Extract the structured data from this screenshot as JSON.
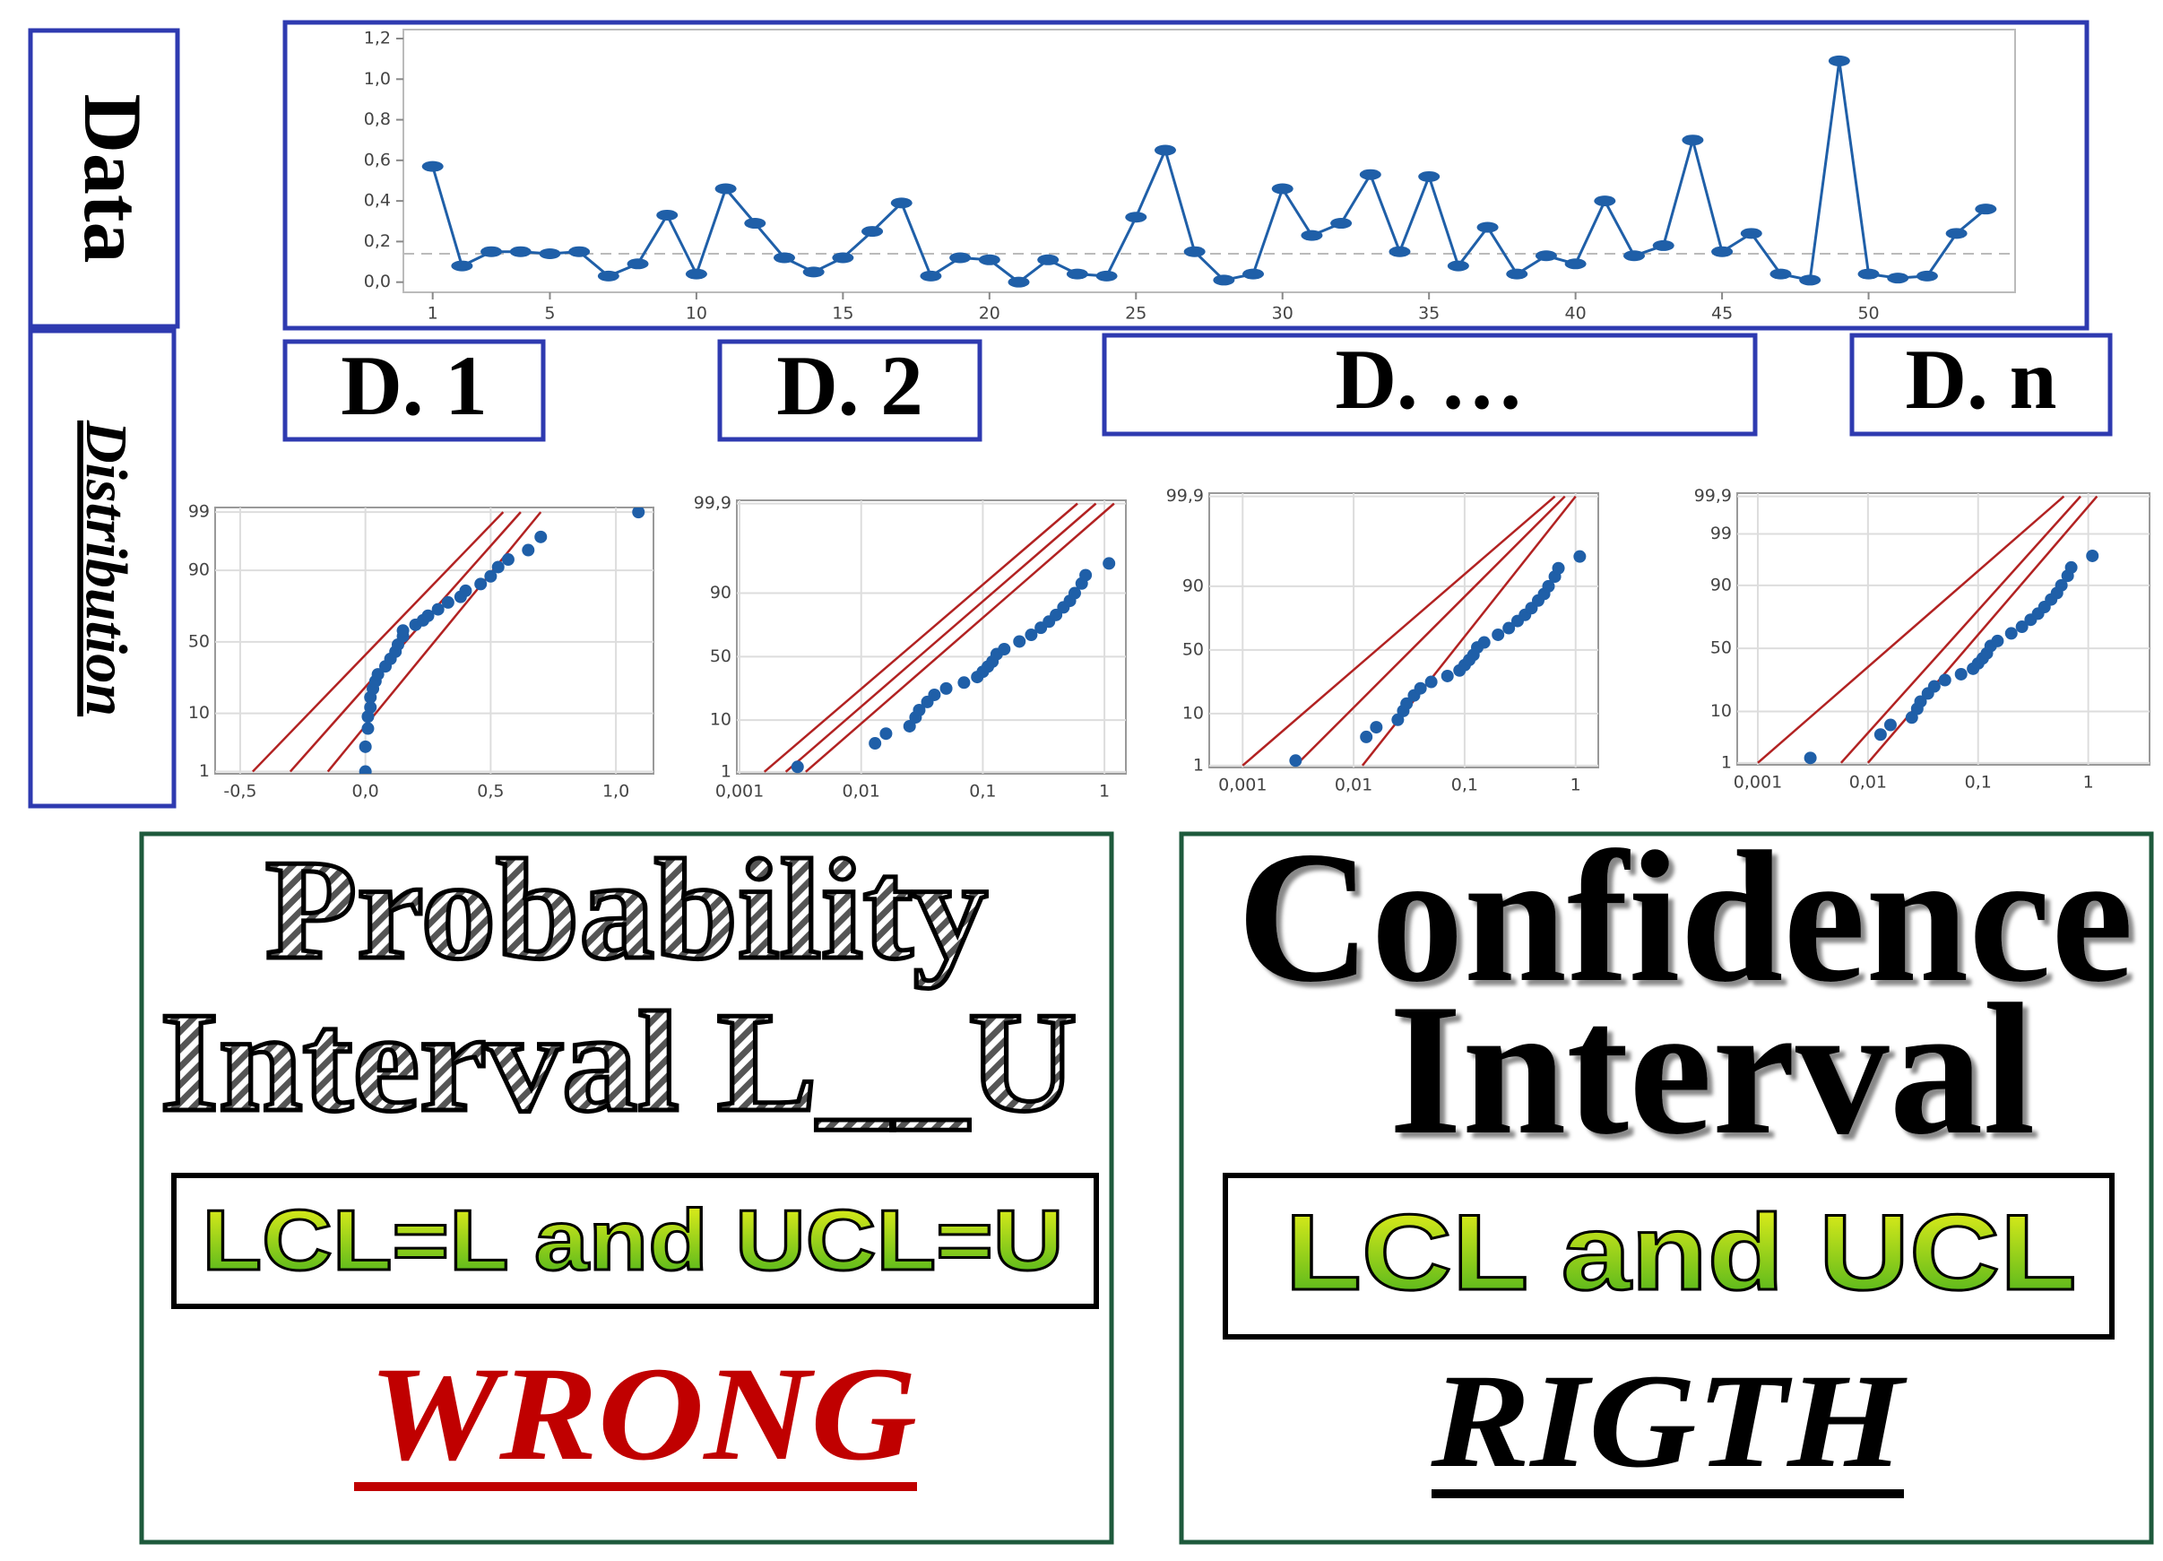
{
  "labels": {
    "data": "Data",
    "distribution": "Distribution"
  },
  "groups": [
    "D. 1",
    "D. 2",
    "D. …",
    "D. n"
  ],
  "chart_data": [
    {
      "type": "line",
      "x": [
        1,
        2,
        3,
        4,
        5,
        6,
        7,
        8,
        9,
        10,
        11,
        12,
        13,
        14,
        15,
        16,
        17,
        18,
        19,
        20,
        21,
        22,
        23,
        24,
        25,
        26,
        27,
        28,
        29,
        30,
        31,
        32,
        33,
        34,
        35,
        36,
        37,
        38,
        39,
        40,
        41,
        42,
        43,
        44,
        45,
        46,
        47,
        48,
        49,
        50,
        51,
        52,
        53,
        54
      ],
      "series": [
        {
          "color": "#1f5fa8",
          "values": [
            0.57,
            0.08,
            0.15,
            0.15,
            0.14,
            0.15,
            0.03,
            0.09,
            0.33,
            0.04,
            0.46,
            0.29,
            0.12,
            0.05,
            0.12,
            0.25,
            0.39,
            0.03,
            0.12,
            0.11,
            0.0,
            0.11,
            0.04,
            0.03,
            0.32,
            0.65,
            0.15,
            0.01,
            0.04,
            0.46,
            0.23,
            0.29,
            0.53,
            0.15,
            0.52,
            0.08,
            0.27,
            0.04,
            0.13,
            0.09,
            0.4,
            0.13,
            0.18,
            0.7,
            0.15,
            0.24,
            0.04,
            0.01,
            1.09,
            0.04,
            0.02,
            0.03,
            0.24,
            0.36
          ]
        }
      ],
      "reference_line": 0.14,
      "xlim": [
        0,
        55
      ],
      "xticks": [
        1,
        5,
        10,
        15,
        20,
        25,
        30,
        35,
        40,
        45,
        50
      ],
      "ylim": [
        -0.05,
        1.2
      ],
      "yticks": [
        {
          "value": 0,
          "label": "0,0"
        },
        {
          "value": 0.2,
          "label": "0,2"
        },
        {
          "value": 0.4,
          "label": "0,4"
        },
        {
          "value": 0.6,
          "label": "0,6"
        },
        {
          "value": 0.8,
          "label": "0,8"
        },
        {
          "value": 1.0,
          "label": "1,0"
        },
        {
          "value": 1.2,
          "label": "1,2"
        }
      ]
    },
    {
      "type": "probability",
      "x_log": false,
      "grid": true,
      "color": "#1f5fa8",
      "x": [
        0.0,
        0.0,
        0.01,
        0.01,
        0.02,
        0.02,
        0.03,
        0.04,
        0.05,
        0.08,
        0.1,
        0.12,
        0.13,
        0.15,
        0.15,
        0.2,
        0.23,
        0.25,
        0.29,
        0.33,
        0.38,
        0.4,
        0.46,
        0.5,
        0.53,
        0.57,
        0.65,
        0.7,
        1.09
      ],
      "y": [
        1,
        3,
        6,
        9,
        12,
        16,
        20,
        24,
        28,
        33,
        38,
        43,
        48,
        54,
        58,
        62,
        65,
        68,
        72,
        76,
        79,
        82,
        85,
        88,
        91,
        93,
        95,
        97,
        99
      ],
      "lines": [
        {
          "color": "#b22222",
          "x": [
            -0.45,
            0.55
          ],
          "y": [
            1,
            99
          ]
        },
        {
          "color": "#b22222",
          "x": [
            -0.3,
            0.62
          ],
          "y": [
            1,
            99
          ]
        },
        {
          "color": "#b22222",
          "x": [
            -0.15,
            0.7
          ],
          "y": [
            1,
            99
          ]
        }
      ],
      "xlim": [
        -0.6,
        1.15
      ],
      "xticks": [
        {
          "value": -0.5,
          "label": "-0,5"
        },
        {
          "value": 0,
          "label": "0,0"
        },
        {
          "value": 0.5,
          "label": "0,5"
        },
        {
          "value": 1.0,
          "label": "1,0"
        }
      ],
      "ylim": [
        0.9,
        99.2
      ],
      "yticks": [
        1,
        10,
        50,
        90,
        99
      ]
    },
    {
      "type": "probability",
      "x_log": true,
      "grid": true,
      "color": "#1f5fa8",
      "x": [
        0.003,
        0.013,
        0.016,
        0.025,
        0.028,
        0.03,
        0.035,
        0.04,
        0.05,
        0.07,
        0.09,
        0.1,
        0.11,
        0.12,
        0.13,
        0.15,
        0.2,
        0.25,
        0.3,
        0.35,
        0.4,
        0.46,
        0.52,
        0.57,
        0.65,
        0.7,
        1.09
      ],
      "y": [
        1.3,
        4,
        6,
        8,
        11,
        14,
        18,
        22,
        26,
        30,
        34,
        38,
        42,
        46,
        52,
        56,
        62,
        67,
        72,
        76,
        80,
        84,
        87,
        90,
        93,
        95,
        97
      ],
      "lines": [
        {
          "color": "#b22222",
          "x": [
            0.0016,
            0.6
          ],
          "y": [
            1,
            99.9
          ]
        },
        {
          "color": "#b22222",
          "x": [
            0.0024,
            0.85
          ],
          "y": [
            1,
            99.9
          ]
        },
        {
          "color": "#b22222",
          "x": [
            0.0035,
            1.2
          ],
          "y": [
            1,
            99.9
          ]
        }
      ],
      "xlim": [
        0.00095,
        1.5
      ],
      "xticks": [
        {
          "value": 0.001,
          "label": "0,001"
        },
        {
          "value": 0.01,
          "label": "0,01"
        },
        {
          "value": 0.1,
          "label": "0,1"
        },
        1
      ],
      "ylim": [
        0.9,
        99.92
      ],
      "yticks": [
        1,
        10,
        50,
        90,
        {
          "value": 99.9,
          "label": "99,9"
        }
      ]
    },
    {
      "type": "probability",
      "x_log": true,
      "grid": true,
      "color": "#1f5fa8",
      "x": [
        0.003,
        0.013,
        0.016,
        0.025,
        0.028,
        0.03,
        0.035,
        0.04,
        0.05,
        0.07,
        0.09,
        0.1,
        0.11,
        0.12,
        0.13,
        0.15,
        0.2,
        0.25,
        0.3,
        0.35,
        0.4,
        0.46,
        0.52,
        0.57,
        0.65,
        0.7,
        1.09
      ],
      "y": [
        1.3,
        4,
        6,
        8,
        11,
        14,
        18,
        22,
        26,
        30,
        34,
        38,
        42,
        46,
        52,
        56,
        62,
        67,
        72,
        76,
        80,
        84,
        87,
        90,
        93,
        95,
        97
      ],
      "lines": [
        {
          "color": "#b22222",
          "x": [
            0.001,
            0.65
          ],
          "y": [
            1,
            99.9
          ]
        },
        {
          "color": "#b22222",
          "x": [
            0.003,
            0.8
          ],
          "y": [
            1,
            99.9
          ]
        },
        {
          "color": "#b22222",
          "x": [
            0.012,
            1.0
          ],
          "y": [
            1,
            99.9
          ]
        }
      ],
      "xlim": [
        0.0005,
        1.6
      ],
      "xticks": [
        {
          "value": 0.001,
          "label": "0,001"
        },
        {
          "value": 0.01,
          "label": "0,01"
        },
        {
          "value": 0.1,
          "label": "0,1"
        },
        1
      ],
      "ylim": [
        0.9,
        99.92
      ],
      "yticks": [
        1,
        10,
        50,
        90,
        {
          "value": 99.9,
          "label": "99,9"
        }
      ]
    },
    {
      "type": "probability",
      "x_log": true,
      "grid": true,
      "color": "#1f5fa8",
      "x": [
        0.003,
        0.013,
        0.016,
        0.025,
        0.028,
        0.03,
        0.035,
        0.04,
        0.05,
        0.07,
        0.09,
        0.1,
        0.11,
        0.12,
        0.13,
        0.15,
        0.2,
        0.25,
        0.3,
        0.35,
        0.4,
        0.46,
        0.52,
        0.57,
        0.65,
        0.7,
        1.09
      ],
      "y": [
        1.3,
        4,
        6,
        8,
        11,
        14,
        18,
        22,
        26,
        30,
        34,
        38,
        42,
        46,
        52,
        56,
        62,
        67,
        72,
        76,
        80,
        84,
        87,
        90,
        93,
        95,
        97
      ],
      "lines": [
        {
          "color": "#b22222",
          "x": [
            0.001,
            0.6
          ],
          "y": [
            1,
            99.9
          ]
        },
        {
          "color": "#b22222",
          "x": [
            0.0057,
            0.85
          ],
          "y": [
            1,
            99.9
          ]
        },
        {
          "color": "#b22222",
          "x": [
            0.01,
            1.2
          ],
          "y": [
            1,
            99.9
          ]
        }
      ],
      "xlim": [
        0.00065,
        3.6
      ],
      "xticks": [
        {
          "value": 0.001,
          "label": "0,001"
        },
        {
          "value": 0.01,
          "label": "0,01"
        },
        {
          "value": 0.1,
          "label": "0,1"
        },
        1
      ],
      "ylim": [
        0.9,
        99.92
      ],
      "yticks": [
        1,
        10,
        50,
        90,
        99,
        {
          "value": 99.9,
          "label": "99,9"
        }
      ]
    }
  ],
  "left": {
    "title1": "Probability",
    "title2": "Interval L__U",
    "box": "LCL=L and UCL=U",
    "verdict": "WRONG"
  },
  "right": {
    "title1": "Confidence",
    "title2": "Interval",
    "box": "LCL and UCL",
    "verdict": "RIGTH"
  }
}
